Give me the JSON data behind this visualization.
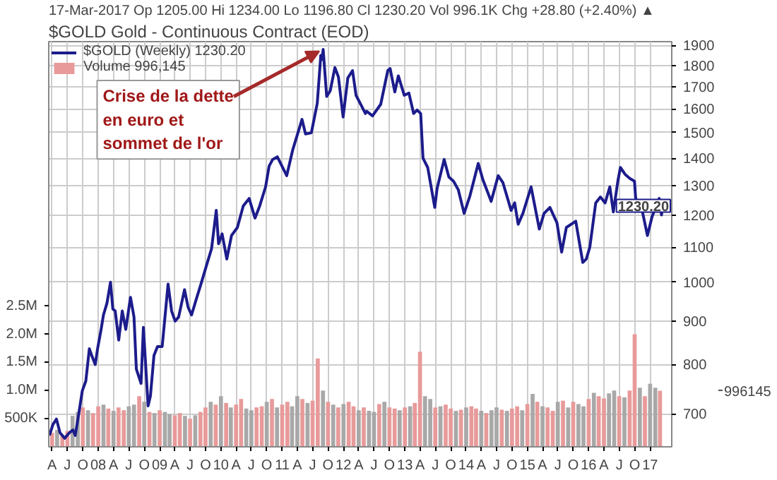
{
  "chart_data": {
    "type": "line",
    "title": "$GOLD Gold - Continuous Contract (EOD)",
    "subtitle": "17-Mar-2017   Op 1205.00  Hi 1234.00  Lo 1196.80  Cl 1230.20  Vol 996.1K  Chg +28.80 (+2.40%) ▲",
    "annotations": [
      {
        "text": "Crise de la dette\nen euro et\nsommet de l'or",
        "x": "2011-09-02",
        "y": 1880
      },
      {
        "text": "1230.20",
        "x": "2017-03-17",
        "y": 1230.2
      },
      "996145"
    ],
    "log": "y",
    "grid": true,
    "legend": "top left",
    "xlim": [
      "2007-03-12",
      "2017-05-10"
    ],
    "ylim": [
      640,
      1920
    ],
    "yticks": [
      700,
      800,
      900,
      1000,
      1100,
      1200,
      1300,
      1400,
      1500,
      1600,
      1700,
      1800,
      1900
    ],
    "y2lim": [
      0,
      7200000
    ],
    "y2ticks": [
      {
        "value": 500000,
        "label": "500K"
      },
      {
        "value": 1000000,
        "label": "1.0M"
      },
      {
        "value": 1500000,
        "label": "1.5M"
      },
      {
        "value": 2000000,
        "label": "2.0M"
      },
      {
        "value": 2500000,
        "label": "2.5M"
      }
    ],
    "xticks": [
      {
        "value": "2007-04",
        "label": "A"
      },
      {
        "value": "2007-07",
        "label": "J"
      },
      {
        "value": "2007-10",
        "label": "O"
      },
      {
        "value": "2008-01",
        "label": "08"
      },
      {
        "value": "2008-04",
        "label": "A"
      },
      {
        "value": "2008-07",
        "label": "J"
      },
      {
        "value": "2008-10",
        "label": "O"
      },
      {
        "value": "2009-01",
        "label": "09"
      },
      {
        "value": "2009-04",
        "label": "A"
      },
      {
        "value": "2009-07",
        "label": "J"
      },
      {
        "value": "2009-10",
        "label": "O"
      },
      {
        "value": "2010-01",
        "label": "10"
      },
      {
        "value": "2010-04",
        "label": "A"
      },
      {
        "value": "2010-07",
        "label": "J"
      },
      {
        "value": "2010-10",
        "label": "O"
      },
      {
        "value": "2011-01",
        "label": "11"
      },
      {
        "value": "2011-04",
        "label": "A"
      },
      {
        "value": "2011-07",
        "label": "J"
      },
      {
        "value": "2011-10",
        "label": "O"
      },
      {
        "value": "2012-01",
        "label": "12"
      },
      {
        "value": "2012-04",
        "label": "A"
      },
      {
        "value": "2012-07",
        "label": "J"
      },
      {
        "value": "2012-10",
        "label": "O"
      },
      {
        "value": "2013-01",
        "label": "13"
      },
      {
        "value": "2013-04",
        "label": "A"
      },
      {
        "value": "2013-07",
        "label": "J"
      },
      {
        "value": "2013-10",
        "label": "O"
      },
      {
        "value": "2014-01",
        "label": "14"
      },
      {
        "value": "2014-04",
        "label": "A"
      },
      {
        "value": "2014-07",
        "label": "J"
      },
      {
        "value": "2014-10",
        "label": "O"
      },
      {
        "value": "2015-01",
        "label": "15"
      },
      {
        "value": "2015-04",
        "label": "A"
      },
      {
        "value": "2015-07",
        "label": "J"
      },
      {
        "value": "2015-10",
        "label": "O"
      },
      {
        "value": "2016-01",
        "label": "16"
      },
      {
        "value": "2016-04",
        "label": "A"
      },
      {
        "value": "2016-07",
        "label": "J"
      },
      {
        "value": "2016-10",
        "label": "O"
      },
      {
        "value": "2017-01",
        "label": "17"
      }
    ],
    "series": [
      {
        "name": "Volume 996,145",
        "type": "bar",
        "axis": "y2",
        "x": [
          "2007-04",
          "2007-05",
          "2007-06",
          "2007-07",
          "2007-08",
          "2007-09",
          "2007-10",
          "2007-11",
          "2007-12",
          "2008-01",
          "2008-02",
          "2008-03",
          "2008-04",
          "2008-05",
          "2008-06",
          "2008-07",
          "2008-08",
          "2008-09",
          "2008-10",
          "2008-11",
          "2008-12",
          "2009-01",
          "2009-02",
          "2009-03",
          "2009-04",
          "2009-05",
          "2009-06",
          "2009-07",
          "2009-08",
          "2009-09",
          "2009-10",
          "2009-11",
          "2009-12",
          "2010-01",
          "2010-02",
          "2010-03",
          "2010-04",
          "2010-05",
          "2010-06",
          "2010-07",
          "2010-08",
          "2010-09",
          "2010-10",
          "2010-11",
          "2010-12",
          "2011-01",
          "2011-02",
          "2011-03",
          "2011-04",
          "2011-05",
          "2011-06",
          "2011-07",
          "2011-08",
          "2011-09",
          "2011-10",
          "2011-11",
          "2011-12",
          "2012-01",
          "2012-02",
          "2012-03",
          "2012-04",
          "2012-05",
          "2012-06",
          "2012-07",
          "2012-08",
          "2012-09",
          "2012-10",
          "2012-11",
          "2012-12",
          "2013-01",
          "2013-02",
          "2013-03",
          "2013-04",
          "2013-05",
          "2013-06",
          "2013-07",
          "2013-08",
          "2013-09",
          "2013-10",
          "2013-11",
          "2013-12",
          "2014-01",
          "2014-02",
          "2014-03",
          "2014-04",
          "2014-05",
          "2014-06",
          "2014-07",
          "2014-08",
          "2014-09",
          "2014-10",
          "2014-11",
          "2014-12",
          "2015-01",
          "2015-02",
          "2015-03",
          "2015-04",
          "2015-05",
          "2015-06",
          "2015-07",
          "2015-08",
          "2015-09",
          "2015-10",
          "2015-11",
          "2015-12",
          "2016-01",
          "2016-02",
          "2016-03",
          "2016-04",
          "2016-05",
          "2016-06",
          "2016-07",
          "2016-08",
          "2016-09",
          "2016-10",
          "2016-11",
          "2016-12",
          "2017-01",
          "2017-02",
          "2017-03"
        ],
        "values": [
          250000,
          300000,
          200000,
          280000,
          550000,
          620000,
          700000,
          650000,
          600000,
          720000,
          750000,
          680000,
          640000,
          700000,
          650000,
          720000,
          750000,
          900000,
          800000,
          620000,
          600000,
          650000,
          620000,
          580000,
          560000,
          600000,
          550000,
          500000,
          560000,
          620000,
          700000,
          800000,
          750000,
          900000,
          780000,
          700000,
          750000,
          850000,
          680000,
          650000,
          700000,
          720000,
          800000,
          850000,
          700000,
          750000,
          800000,
          720000,
          900000,
          850000,
          780000,
          820000,
          1570000,
          1000000,
          800000,
          750000,
          700000,
          760000,
          800000,
          720000,
          650000,
          700000,
          640000,
          620000,
          760000,
          800000,
          700000,
          680000,
          650000,
          700000,
          720000,
          780000,
          1690000,
          900000,
          850000,
          700000,
          720000,
          750000,
          680000,
          640000,
          660000,
          700000,
          720000,
          680000,
          640000,
          600000,
          650000,
          700000,
          660000,
          640000,
          680000,
          720000,
          650000,
          760000,
          940000,
          800000,
          720000,
          700000,
          640000,
          800000,
          820000,
          700000,
          800000,
          760000,
          720000,
          850000,
          960000,
          900000,
          860000,
          950000,
          1000000,
          900000,
          880000,
          1000000,
          2000000,
          1050000,
          900000,
          1120000,
          1050000,
          996145
        ],
        "colors": [
          "#e89a9a",
          "#a8a8a8",
          "#e89a9a",
          "#e89a9a",
          "#a8a8a8",
          "#a8a8a8",
          "#e89a9a",
          "#a8a8a8",
          "#e89a9a",
          "#e89a9a",
          "#a8a8a8",
          "#e89a9a",
          "#a8a8a8",
          "#e89a9a",
          "#e89a9a",
          "#a8a8a8",
          "#a8a8a8",
          "#e89a9a",
          "#a8a8a8",
          "#e89a9a",
          "#a8a8a8",
          "#e89a9a",
          "#a8a8a8",
          "#a8a8a8",
          "#e89a9a",
          "#e89a9a",
          "#a8a8a8",
          "#e89a9a",
          "#a8a8a8",
          "#e89a9a",
          "#e89a9a",
          "#a8a8a8",
          "#e89a9a",
          "#a8a8a8",
          "#e89a9a",
          "#a8a8a8",
          "#e89a9a",
          "#e89a9a",
          "#a8a8a8",
          "#a8a8a8",
          "#e89a9a",
          "#e89a9a",
          "#a8a8a8",
          "#e89a9a",
          "#a8a8a8",
          "#e89a9a",
          "#e89a9a",
          "#a8a8a8",
          "#a8a8a8",
          "#e89a9a",
          "#a8a8a8",
          "#e89a9a",
          "#e89a9a",
          "#a8a8a8",
          "#e89a9a",
          "#a8a8a8",
          "#e89a9a",
          "#a8a8a8",
          "#e89a9a",
          "#e89a9a",
          "#a8a8a8",
          "#e89a9a",
          "#a8a8a8",
          "#a8a8a8",
          "#e89a9a",
          "#a8a8a8",
          "#e89a9a",
          "#e89a9a",
          "#a8a8a8",
          "#e89a9a",
          "#a8a8a8",
          "#e89a9a",
          "#e89a9a",
          "#a8a8a8",
          "#a8a8a8",
          "#e89a9a",
          "#a8a8a8",
          "#e89a9a",
          "#e89a9a",
          "#a8a8a8",
          "#e89a9a",
          "#a8a8a8",
          "#e89a9a",
          "#e89a9a",
          "#a8a8a8",
          "#e89a9a",
          "#a8a8a8",
          "#a8a8a8",
          "#e89a9a",
          "#a8a8a8",
          "#e89a9a",
          "#e89a9a",
          "#a8a8a8",
          "#e89a9a",
          "#a8a8a8",
          "#e89a9a",
          "#a8a8a8",
          "#e89a9a",
          "#e89a9a",
          "#a8a8a8",
          "#e89a9a",
          "#a8a8a8",
          "#e89a9a",
          "#a8a8a8",
          "#a8a8a8",
          "#e89a9a",
          "#a8a8a8",
          "#e89a9a",
          "#e89a9a",
          "#a8a8a8",
          "#a8a8a8",
          "#e89a9a",
          "#a8a8a8",
          "#e89a9a",
          "#e89a9a",
          "#a8a8a8",
          "#e89a9a",
          "#a8a8a8",
          "#a8a8a8",
          "#e89a9a"
        ]
      },
      {
        "name": "$GOLD (Weekly) 1230.20",
        "color": "#1c1c8c",
        "x": [
          "2007-03-16",
          "2007-04-06",
          "2007-04-27",
          "2007-05-18",
          "2007-06-15",
          "2007-07-13",
          "2007-08-03",
          "2007-08-17",
          "2007-09-07",
          "2007-09-28",
          "2007-10-19",
          "2007-11-09",
          "2007-11-23",
          "2007-12-14",
          "2007-12-28",
          "2008-01-18",
          "2008-02-01",
          "2008-02-22",
          "2008-03-14",
          "2008-03-28",
          "2008-04-11",
          "2008-05-02",
          "2008-05-23",
          "2008-06-13",
          "2008-07-11",
          "2008-08-01",
          "2008-08-15",
          "2008-09-12",
          "2008-09-26",
          "2008-10-24",
          "2008-11-07",
          "2008-11-28",
          "2008-12-19",
          "2009-01-16",
          "2009-02-20",
          "2009-03-13",
          "2009-04-03",
          "2009-04-24",
          "2009-05-29",
          "2009-06-19",
          "2009-07-10",
          "2009-08-07",
          "2009-09-04",
          "2009-10-09",
          "2009-11-06",
          "2009-12-04",
          "2009-12-18",
          "2010-01-08",
          "2010-02-05",
          "2010-03-05",
          "2010-04-09",
          "2010-05-14",
          "2010-06-18",
          "2010-07-23",
          "2010-08-20",
          "2010-09-24",
          "2010-10-15",
          "2010-11-05",
          "2010-12-03",
          "2011-01-28",
          "2011-03-04",
          "2011-04-29",
          "2011-05-20",
          "2011-06-24",
          "2011-07-29",
          "2011-08-19",
          "2011-08-26",
          "2011-09-02",
          "2011-09-23",
          "2011-10-14",
          "2011-11-11",
          "2011-12-02",
          "2011-12-30",
          "2012-01-27",
          "2012-02-24",
          "2012-03-16",
          "2012-05-11",
          "2012-05-18",
          "2012-06-22",
          "2012-08-10",
          "2012-09-21",
          "2012-10-05",
          "2012-11-02",
          "2012-11-23",
          "2012-12-28",
          "2013-01-25",
          "2013-02-22",
          "2013-03-15",
          "2013-04-05",
          "2013-04-19",
          "2013-05-17",
          "2013-06-28",
          "2013-07-12",
          "2013-08-23",
          "2013-09-20",
          "2013-10-18",
          "2013-11-15",
          "2013-12-20",
          "2014-01-24",
          "2014-03-14",
          "2014-04-11",
          "2014-05-30",
          "2014-07-11",
          "2014-08-08",
          "2014-09-26",
          "2014-10-17",
          "2014-11-07",
          "2014-12-05",
          "2015-01-23",
          "2015-03-13",
          "2015-04-10",
          "2015-05-15",
          "2015-06-26",
          "2015-07-24",
          "2015-08-21",
          "2015-10-16",
          "2015-11-27",
          "2015-12-18",
          "2016-01-08",
          "2016-02-12",
          "2016-03-11",
          "2016-04-08",
          "2016-05-06",
          "2016-05-27",
          "2016-06-24",
          "2016-07-08",
          "2016-08-05",
          "2016-09-02",
          "2016-09-30",
          "2016-10-07",
          "2016-11-11",
          "2016-12-16",
          "2017-01-13",
          "2017-02-10",
          "2017-02-24",
          "2017-03-10",
          "2017-03-17"
        ],
        "values": [
          660,
          680,
          690,
          665,
          655,
          665,
          670,
          660,
          700,
          745,
          765,
          835,
          820,
          800,
          835,
          880,
          915,
          945,
          1000,
          930,
          925,
          855,
          925,
          880,
          960,
          910,
          790,
          760,
          885,
          715,
          735,
          820,
          840,
          840,
          995,
          925,
          900,
          910,
          980,
          935,
          915,
          955,
          995,
          1050,
          1095,
          1215,
          1110,
          1140,
          1065,
          1135,
          1160,
          1230,
          1255,
          1190,
          1230,
          1295,
          1370,
          1395,
          1405,
          1335,
          1430,
          1555,
          1495,
          1500,
          1625,
          1850,
          1830,
          1880,
          1655,
          1680,
          1790,
          1745,
          1565,
          1740,
          1775,
          1660,
          1580,
          1590,
          1570,
          1620,
          1775,
          1785,
          1675,
          1750,
          1660,
          1670,
          1580,
          1595,
          1580,
          1400,
          1365,
          1225,
          1290,
          1395,
          1330,
          1315,
          1285,
          1205,
          1265,
          1380,
          1320,
          1245,
          1335,
          1310,
          1215,
          1240,
          1170,
          1205,
          1295,
          1155,
          1205,
          1225,
          1175,
          1085,
          1160,
          1180,
          1055,
          1065,
          1100,
          1240,
          1260,
          1240,
          1295,
          1210,
          1320,
          1365,
          1340,
          1325,
          1315,
          1255,
          1225,
          1135,
          1195,
          1235,
          1255,
          1200,
          1230.2
        ]
      }
    ]
  }
}
